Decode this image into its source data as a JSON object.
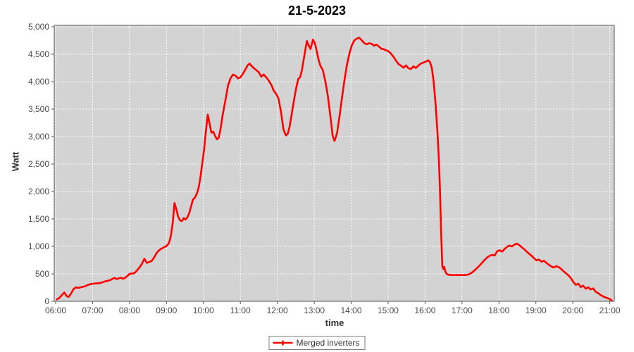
{
  "title": "21-5-2023",
  "legend": {
    "label": "Merged inverters",
    "position": "bottom"
  },
  "colors": {
    "line": "#ff0000",
    "plot_background": "#d3d3d3",
    "grid": "#ffffff",
    "plot_border": "#545454",
    "tick_label": "#4a4a4a",
    "page_background": "#ffffff"
  },
  "chart_data": {
    "type": "line",
    "title": "21-5-2023",
    "xlabel": "time",
    "ylabel": "Watt",
    "ylim": [
      0,
      5000
    ],
    "xlim": [
      "06:00",
      "21:00"
    ],
    "grid": "on",
    "legend_position": "bottom-center",
    "x_ticks": [
      "06:00",
      "07:00",
      "08:00",
      "09:00",
      "10:00",
      "11:00",
      "12:00",
      "13:00",
      "14:00",
      "15:00",
      "16:00",
      "17:00",
      "18:00",
      "19:00",
      "20:00",
      "21:00"
    ],
    "y_ticks": [
      0,
      500,
      1000,
      1500,
      2000,
      2500,
      3000,
      3500,
      4000,
      4500,
      5000
    ],
    "y_tick_labels": [
      "0",
      "500",
      "1,000",
      "1,500",
      "2,000",
      "2,500",
      "3,000",
      "3,500",
      "4,000",
      "4,500",
      "5,000"
    ],
    "series": [
      {
        "name": "Merged inverters",
        "color": "#ff0000",
        "points": [
          [
            "06:02",
            35
          ],
          [
            "06:06",
            60
          ],
          [
            "06:10",
            110
          ],
          [
            "06:14",
            160
          ],
          [
            "06:18",
            95
          ],
          [
            "06:21",
            80
          ],
          [
            "06:25",
            140
          ],
          [
            "06:29",
            220
          ],
          [
            "06:33",
            255
          ],
          [
            "06:37",
            245
          ],
          [
            "06:41",
            255
          ],
          [
            "06:45",
            265
          ],
          [
            "06:49",
            280
          ],
          [
            "06:53",
            300
          ],
          [
            "06:57",
            315
          ],
          [
            "07:01",
            320
          ],
          [
            "07:05",
            325
          ],
          [
            "07:09",
            330
          ],
          [
            "07:13",
            335
          ],
          [
            "07:17",
            350
          ],
          [
            "07:21",
            365
          ],
          [
            "07:25",
            375
          ],
          [
            "07:29",
            390
          ],
          [
            "07:33",
            415
          ],
          [
            "07:36",
            425
          ],
          [
            "07:39",
            405
          ],
          [
            "07:43",
            420
          ],
          [
            "07:46",
            430
          ],
          [
            "07:49",
            410
          ],
          [
            "07:53",
            430
          ],
          [
            "07:57",
            465
          ],
          [
            "08:00",
            500
          ],
          [
            "08:04",
            505
          ],
          [
            "08:08",
            515
          ],
          [
            "08:12",
            560
          ],
          [
            "08:16",
            615
          ],
          [
            "08:20",
            680
          ],
          [
            "08:24",
            775
          ],
          [
            "08:28",
            700
          ],
          [
            "08:32",
            715
          ],
          [
            "08:36",
            735
          ],
          [
            "08:40",
            800
          ],
          [
            "08:44",
            880
          ],
          [
            "08:48",
            930
          ],
          [
            "08:52",
            960
          ],
          [
            "08:56",
            985
          ],
          [
            "09:00",
            1005
          ],
          [
            "09:04",
            1060
          ],
          [
            "09:07",
            1180
          ],
          [
            "09:10",
            1420
          ],
          [
            "09:13",
            1790
          ],
          [
            "09:16",
            1680
          ],
          [
            "09:19",
            1540
          ],
          [
            "09:22",
            1475
          ],
          [
            "09:25",
            1460
          ],
          [
            "09:28",
            1515
          ],
          [
            "09:31",
            1490
          ],
          [
            "09:34",
            1530
          ],
          [
            "09:37",
            1610
          ],
          [
            "09:40",
            1730
          ],
          [
            "09:43",
            1855
          ],
          [
            "09:46",
            1885
          ],
          [
            "09:49",
            1950
          ],
          [
            "09:52",
            2060
          ],
          [
            "09:55",
            2250
          ],
          [
            "09:58",
            2500
          ],
          [
            "10:01",
            2750
          ],
          [
            "10:04",
            3100
          ],
          [
            "10:07",
            3400
          ],
          [
            "10:10",
            3240
          ],
          [
            "10:13",
            3070
          ],
          [
            "10:16",
            3090
          ],
          [
            "10:19",
            3010
          ],
          [
            "10:22",
            2950
          ],
          [
            "10:25",
            2980
          ],
          [
            "10:28",
            3150
          ],
          [
            "10:31",
            3380
          ],
          [
            "10:34",
            3560
          ],
          [
            "10:37",
            3740
          ],
          [
            "10:40",
            3930
          ],
          [
            "10:44",
            4060
          ],
          [
            "10:48",
            4130
          ],
          [
            "10:52",
            4110
          ],
          [
            "10:56",
            4060
          ],
          [
            "11:00",
            4080
          ],
          [
            "11:04",
            4140
          ],
          [
            "11:08",
            4220
          ],
          [
            "11:12",
            4300
          ],
          [
            "11:15",
            4330
          ],
          [
            "11:18",
            4290
          ],
          [
            "11:22",
            4245
          ],
          [
            "11:26",
            4210
          ],
          [
            "11:30",
            4170
          ],
          [
            "11:34",
            4090
          ],
          [
            "11:38",
            4130
          ],
          [
            "11:42",
            4080
          ],
          [
            "11:46",
            4020
          ],
          [
            "11:50",
            3950
          ],
          [
            "11:54",
            3840
          ],
          [
            "11:58",
            3780
          ],
          [
            "12:02",
            3690
          ],
          [
            "12:06",
            3450
          ],
          [
            "12:10",
            3130
          ],
          [
            "12:14",
            3020
          ],
          [
            "12:17",
            3050
          ],
          [
            "12:20",
            3180
          ],
          [
            "12:24",
            3450
          ],
          [
            "12:28",
            3720
          ],
          [
            "12:31",
            3900
          ],
          [
            "12:34",
            4050
          ],
          [
            "12:37",
            4080
          ],
          [
            "12:40",
            4210
          ],
          [
            "12:44",
            4480
          ],
          [
            "12:48",
            4740
          ],
          [
            "12:51",
            4660
          ],
          [
            "12:54",
            4595
          ],
          [
            "12:58",
            4765
          ],
          [
            "13:01",
            4700
          ],
          [
            "13:04",
            4560
          ],
          [
            "13:07",
            4400
          ],
          [
            "13:10",
            4290
          ],
          [
            "13:14",
            4210
          ],
          [
            "13:18",
            4010
          ],
          [
            "13:22",
            3750
          ],
          [
            "13:26",
            3390
          ],
          [
            "13:30",
            3010
          ],
          [
            "13:33",
            2920
          ],
          [
            "13:37",
            3060
          ],
          [
            "13:41",
            3360
          ],
          [
            "13:45",
            3700
          ],
          [
            "13:49",
            4020
          ],
          [
            "13:53",
            4300
          ],
          [
            "13:57",
            4510
          ],
          [
            "14:01",
            4660
          ],
          [
            "14:05",
            4750
          ],
          [
            "14:09",
            4785
          ],
          [
            "14:13",
            4800
          ],
          [
            "14:17",
            4755
          ],
          [
            "14:21",
            4705
          ],
          [
            "14:25",
            4680
          ],
          [
            "14:29",
            4700
          ],
          [
            "14:33",
            4690
          ],
          [
            "14:37",
            4655
          ],
          [
            "14:41",
            4675
          ],
          [
            "14:45",
            4640
          ],
          [
            "14:49",
            4600
          ],
          [
            "14:53",
            4590
          ],
          [
            "14:57",
            4570
          ],
          [
            "15:01",
            4550
          ],
          [
            "15:05",
            4505
          ],
          [
            "15:09",
            4450
          ],
          [
            "15:13",
            4380
          ],
          [
            "15:17",
            4320
          ],
          [
            "15:21",
            4290
          ],
          [
            "15:25",
            4255
          ],
          [
            "15:29",
            4295
          ],
          [
            "15:33",
            4245
          ],
          [
            "15:37",
            4230
          ],
          [
            "15:41",
            4280
          ],
          [
            "15:45",
            4250
          ],
          [
            "15:49",
            4290
          ],
          [
            "15:53",
            4330
          ],
          [
            "15:57",
            4345
          ],
          [
            "16:01",
            4365
          ],
          [
            "16:05",
            4390
          ],
          [
            "16:08",
            4355
          ],
          [
            "16:11",
            4250
          ],
          [
            "16:14",
            4000
          ],
          [
            "16:17",
            3600
          ],
          [
            "16:20",
            3100
          ],
          [
            "16:22",
            2700
          ],
          [
            "16:24",
            2100
          ],
          [
            "16:26",
            1300
          ],
          [
            "16:28",
            640
          ],
          [
            "16:30",
            585
          ],
          [
            "16:31",
            630
          ],
          [
            "16:33",
            545
          ],
          [
            "16:35",
            500
          ],
          [
            "16:38",
            485
          ],
          [
            "16:42",
            480
          ],
          [
            "16:48",
            478
          ],
          [
            "16:54",
            480
          ],
          [
            "17:00",
            478
          ],
          [
            "17:06",
            480
          ],
          [
            "17:11",
            490
          ],
          [
            "17:16",
            520
          ],
          [
            "17:21",
            570
          ],
          [
            "17:26",
            625
          ],
          [
            "17:31",
            680
          ],
          [
            "17:36",
            745
          ],
          [
            "17:41",
            800
          ],
          [
            "17:45",
            830
          ],
          [
            "17:49",
            845
          ],
          [
            "17:53",
            835
          ],
          [
            "17:57",
            910
          ],
          [
            "18:01",
            930
          ],
          [
            "18:05",
            905
          ],
          [
            "18:09",
            950
          ],
          [
            "18:13",
            990
          ],
          [
            "18:17",
            1015
          ],
          [
            "18:21",
            1000
          ],
          [
            "18:25",
            1030
          ],
          [
            "18:29",
            1050
          ],
          [
            "18:33",
            1025
          ],
          [
            "18:37",
            985
          ],
          [
            "18:41",
            950
          ],
          [
            "18:45",
            905
          ],
          [
            "18:49",
            865
          ],
          [
            "18:53",
            830
          ],
          [
            "18:57",
            785
          ],
          [
            "19:01",
            745
          ],
          [
            "19:05",
            760
          ],
          [
            "19:09",
            720
          ],
          [
            "19:13",
            740
          ],
          [
            "19:17",
            700
          ],
          [
            "19:21",
            665
          ],
          [
            "19:25",
            635
          ],
          [
            "19:29",
            615
          ],
          [
            "19:33",
            640
          ],
          [
            "19:37",
            625
          ],
          [
            "19:41",
            590
          ],
          [
            "19:45",
            545
          ],
          [
            "19:49",
            510
          ],
          [
            "19:53",
            470
          ],
          [
            "19:57",
            420
          ],
          [
            "20:01",
            350
          ],
          [
            "20:05",
            300
          ],
          [
            "20:09",
            320
          ],
          [
            "20:13",
            260
          ],
          [
            "20:17",
            285
          ],
          [
            "20:21",
            230
          ],
          [
            "20:25",
            255
          ],
          [
            "20:29",
            215
          ],
          [
            "20:33",
            235
          ],
          [
            "20:37",
            175
          ],
          [
            "20:41",
            150
          ],
          [
            "20:45",
            115
          ],
          [
            "20:49",
            90
          ],
          [
            "20:53",
            70
          ],
          [
            "20:57",
            55
          ],
          [
            "21:00",
            40
          ],
          [
            "21:03",
            15
          ]
        ]
      }
    ]
  }
}
